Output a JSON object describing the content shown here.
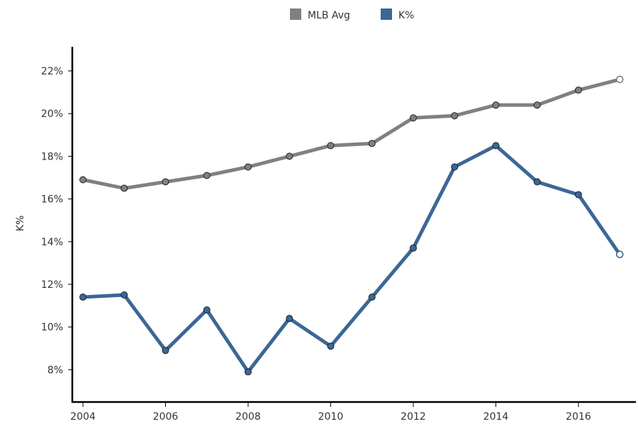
{
  "chart_data": {
    "type": "line",
    "title": "",
    "xlabel": "",
    "ylabel": "K%",
    "x": [
      2004,
      2005,
      2006,
      2007,
      2008,
      2009,
      2010,
      2011,
      2012,
      2013,
      2014,
      2015,
      2016,
      2017
    ],
    "xlim": [
      2003.95,
      2017.35
    ],
    "ylim": [
      6.6,
      23.2
    ],
    "x_ticks": [
      2004,
      2006,
      2008,
      2010,
      2012,
      2014,
      2016
    ],
    "x_tick_labels": [
      "2004",
      "2006",
      "2008",
      "2010",
      "2012",
      "2014",
      "2016"
    ],
    "y_ticks": [
      8,
      10,
      12,
      14,
      16,
      18,
      20,
      22
    ],
    "y_tick_labels": [
      "8%",
      "10%",
      "12%",
      "14%",
      "16%",
      "18%",
      "20%",
      "22%"
    ],
    "grid": false,
    "legend_position": "top-center",
    "series": [
      {
        "name": "MLB Avg",
        "color": "#808080",
        "values": [
          16.9,
          16.5,
          16.8,
          17.1,
          17.5,
          18.0,
          18.5,
          18.6,
          19.8,
          19.9,
          20.4,
          20.4,
          21.1,
          21.6
        ]
      },
      {
        "name": "K%",
        "color": "#3b6796",
        "values": [
          11.4,
          11.5,
          8.9,
          10.8,
          7.9,
          10.4,
          9.1,
          11.4,
          13.7,
          17.5,
          18.5,
          16.8,
          16.2,
          13.4
        ]
      }
    ],
    "last_point_open": true
  },
  "legend": {
    "items": [
      {
        "label": "MLB Avg",
        "color": "#808080"
      },
      {
        "label": "K%",
        "color": "#3b6796"
      }
    ]
  }
}
